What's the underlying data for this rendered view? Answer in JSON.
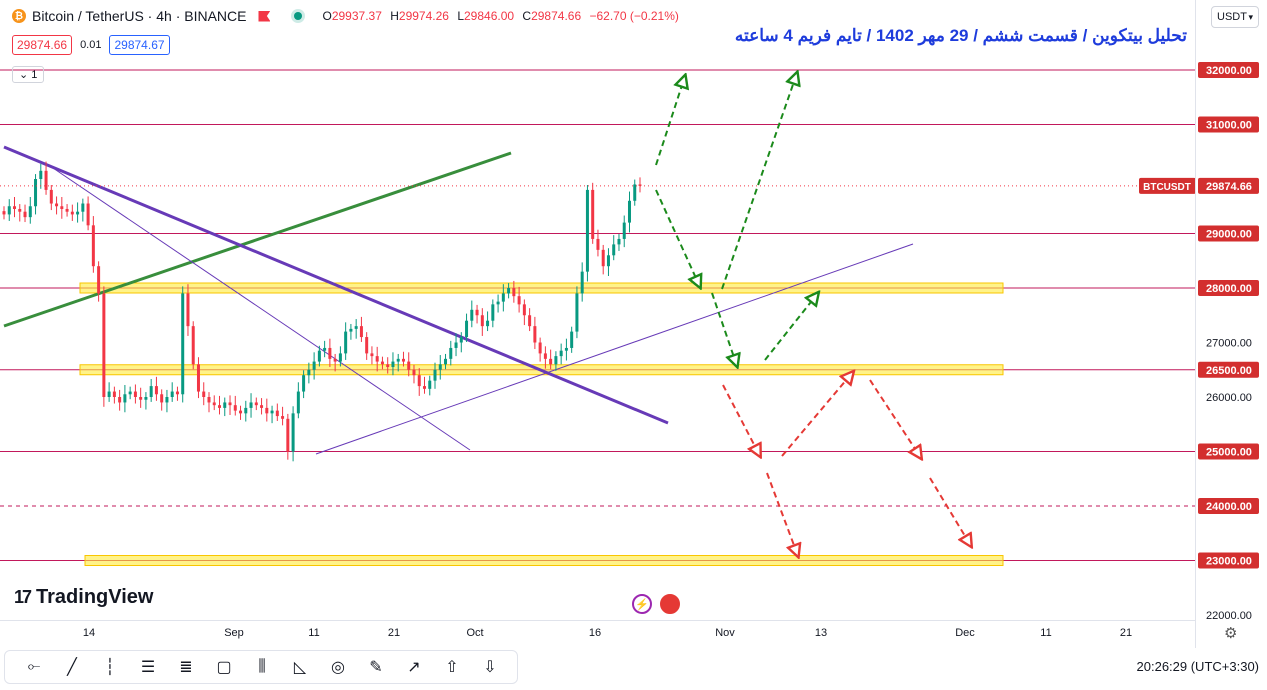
{
  "header": {
    "symbol": "Bitcoin / TetherUS · 4h · BINANCE",
    "coin_glyph": "₿",
    "open_k": "O",
    "open_v": "29937.37",
    "high_k": "H",
    "high_v": "29974.26",
    "low_k": "L",
    "low_v": "29846.00",
    "close_k": "C",
    "close_v": "29874.66",
    "change_v": "−62.70 (−0.21%)",
    "sell_price": "29874.66",
    "spread": "0.01",
    "buy_price": "29874.67",
    "collapse_label": "1"
  },
  "title": "تحلیل بیتکوین / قسمت ششم / 29 مهر 1402 / تایم فریم 4 ساعته",
  "currency": "USDT",
  "branding": "TradingView",
  "clock": "20:26:29 (UTC+3:30)",
  "colors": {
    "up": "#089981",
    "down": "#f23645",
    "level_line": "#c2185b",
    "zone": "#ffeb3b",
    "trend_purple": "#673ab7",
    "trend_green": "#388e3c",
    "arrow_green": "#1b8a1b",
    "arrow_red": "#e53935",
    "label_bg": "#d32f2f"
  },
  "toolbar_icons": [
    "horizontal-line-icon",
    "trend-line-icon",
    "vertical-line-icon",
    "parallel-channel-icon",
    "fib-retracement-icon",
    "rectangle-icon",
    "pitchfork-icon",
    "triangle-pattern-icon",
    "circle-icon",
    "brush-icon",
    "arrow-icon",
    "arrow-mark-up-icon",
    "arrow-mark-down-icon"
  ],
  "chart_data": {
    "type": "candlestick",
    "symbol": "BTCUSDT",
    "timeframe": "4h",
    "ylim": [
      21800,
      33000
    ],
    "last_price": 29874.66,
    "last_price_label": "BTCUSDT",
    "y_ticks": [
      22000,
      26000,
      27000
    ],
    "highlighted_levels": [
      {
        "price": 32000,
        "label": "32000.00"
      },
      {
        "price": 31000,
        "label": "31000.00"
      },
      {
        "price": 29000,
        "label": "29000.00"
      },
      {
        "price": 28000,
        "label": "28000.00"
      },
      {
        "price": 26500,
        "label": "26500.00"
      },
      {
        "price": 25000,
        "label": "25000.00"
      },
      {
        "price": 24000,
        "label": "24000.00",
        "dashed": true
      },
      {
        "price": 23000,
        "label": "23000.00"
      }
    ],
    "zones": [
      28000,
      26500,
      23000
    ],
    "x_labels": [
      "14",
      "Sep",
      "11",
      "21",
      "Oct",
      "16",
      "Nov",
      "13",
      "Dec",
      "11",
      "21"
    ],
    "series": [
      {
        "values": [
          29350,
          29500,
          29450,
          29400,
          29300,
          29500,
          30000,
          30150,
          29800,
          29550,
          29500,
          29450,
          29400,
          29350,
          29400,
          29550,
          29150,
          28400,
          27900,
          26000,
          26100,
          26000,
          25900,
          26050,
          26100,
          26000,
          25950,
          26000,
          26200,
          26050,
          25900,
          26000,
          26100,
          26050,
          27900,
          27300,
          26600,
          26100,
          26000,
          25900,
          25850,
          25800,
          25900,
          25850,
          25750,
          25700,
          25800,
          25900,
          25850,
          25800,
          25700,
          25750,
          25650,
          25600,
          25000,
          25700,
          26100,
          26400,
          26500,
          26650,
          26850,
          26900,
          26700,
          26650,
          26800,
          27200,
          27250,
          27300,
          27100,
          26800,
          26750,
          26650,
          26600,
          26550,
          26650,
          26700,
          26650,
          26500,
          26400,
          26200,
          26150,
          26300,
          26500,
          26600,
          26700,
          26900,
          27000,
          27100,
          27400,
          27600,
          27500,
          27300,
          27400,
          27700,
          27750,
          27900,
          28000,
          27850,
          27700,
          27500,
          27300,
          27000,
          26800,
          26700,
          26600,
          26750,
          26850,
          26900,
          27200,
          27900,
          28300,
          29800,
          28900,
          28700,
          28400,
          28600,
          28800,
          28900,
          29200,
          29600,
          29900,
          29874.66
        ]
      }
    ]
  }
}
